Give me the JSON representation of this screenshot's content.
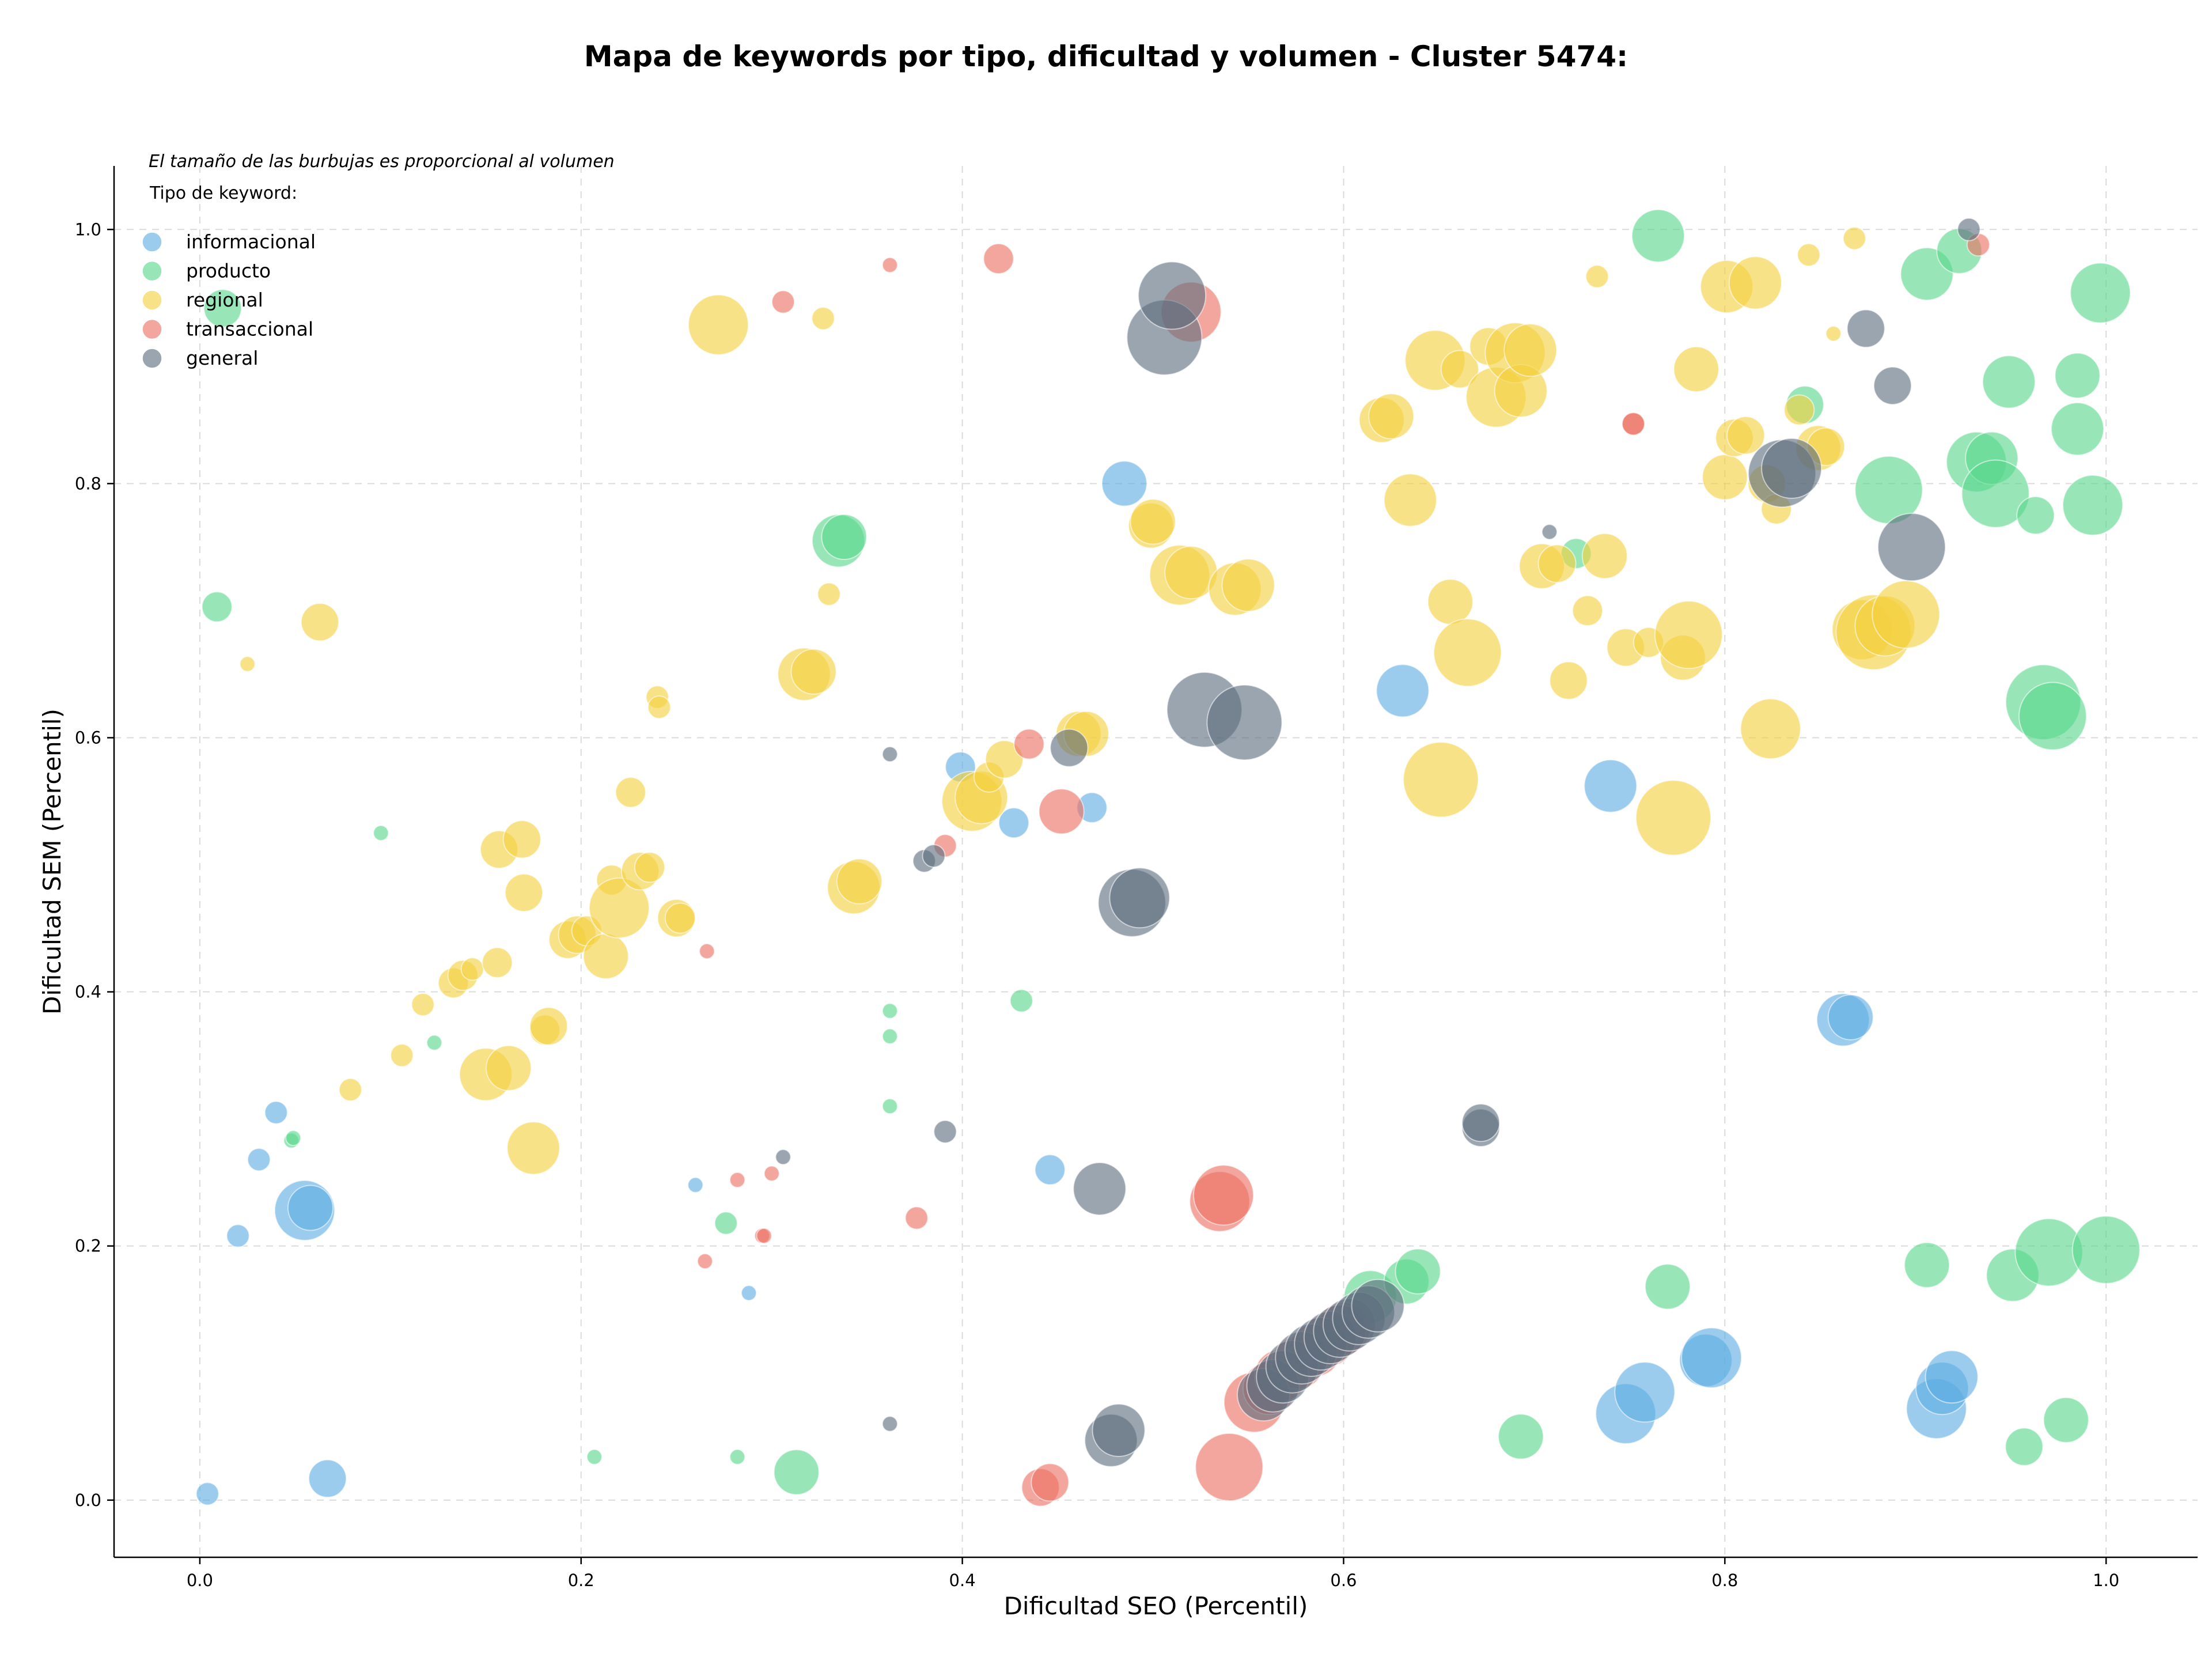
{
  "chart_data": {
    "type": "scatter",
    "title": "Mapa de keywords por tipo, dificultad y volumen - Cluster 5474:",
    "xlabel": "Dificultad SEO (Percentil)",
    "ylabel": "Dificultad SEM (Percentil)",
    "xlim": [
      -0.045,
      1.048
    ],
    "ylim": [
      -0.045,
      1.05
    ],
    "xticks": [
      0.0,
      0.2,
      0.4,
      0.6,
      0.8,
      1.0
    ],
    "yticks": [
      0.0,
      0.2,
      0.4,
      0.6,
      0.8,
      1.0
    ],
    "xtick_labels": [
      "0.0",
      "0.2",
      "0.4",
      "0.6",
      "0.8",
      "1.0"
    ],
    "ytick_labels": [
      "0.0",
      "0.2",
      "0.4",
      "0.6",
      "0.8",
      "1.0"
    ],
    "grid": true,
    "annotation": "El tamaño de las burbujas es proporcional al volumen",
    "legend_title": "Tipo de keyword:",
    "legend_position": "top-left",
    "colors": {
      "informacional": "#5dade2",
      "producto": "#58d68d",
      "regional": "#f4d03f",
      "transaccional": "#ec7063",
      "general": "#5d6d7e"
    },
    "series": [
      {
        "name": "informacional",
        "points": [
          [
            0.004,
            0.005,
            3
          ],
          [
            0.067,
            0.017,
            5
          ],
          [
            0.02,
            0.208,
            3
          ],
          [
            0.031,
            0.268,
            3
          ],
          [
            0.04,
            0.305,
            3
          ],
          [
            0.055,
            0.228,
            8
          ],
          [
            0.058,
            0.23,
            6
          ],
          [
            0.26,
            0.248,
            2
          ],
          [
            0.288,
            0.163,
            2
          ],
          [
            0.399,
            0.577,
            4
          ],
          [
            0.427,
            0.533,
            4
          ],
          [
            0.446,
            0.26,
            4
          ],
          [
            0.468,
            0.545,
            4
          ],
          [
            0.485,
            0.8,
            6
          ],
          [
            0.631,
            0.637,
            7
          ],
          [
            0.74,
            0.562,
            7
          ],
          [
            0.748,
            0.068,
            8
          ],
          [
            0.758,
            0.085,
            8
          ],
          [
            0.79,
            0.11,
            7
          ],
          [
            0.793,
            0.112,
            8
          ],
          [
            0.862,
            0.378,
            7
          ],
          [
            0.866,
            0.38,
            6
          ],
          [
            0.911,
            0.072,
            8
          ],
          [
            0.914,
            0.088,
            7
          ],
          [
            0.919,
            0.097,
            7
          ]
        ]
      },
      {
        "name": "producto",
        "points": [
          [
            0.009,
            0.703,
            4
          ],
          [
            0.012,
            0.938,
            5
          ],
          [
            0.048,
            0.283,
            2
          ],
          [
            0.049,
            0.285,
            2
          ],
          [
            0.095,
            0.525,
            2
          ],
          [
            0.123,
            0.36,
            2
          ],
          [
            0.207,
            0.034,
            2
          ],
          [
            0.276,
            0.218,
            3
          ],
          [
            0.282,
            0.034,
            2
          ],
          [
            0.313,
            0.022,
            6
          ],
          [
            0.335,
            0.755,
            7
          ],
          [
            0.338,
            0.758,
            6
          ],
          [
            0.362,
            0.31,
            2
          ],
          [
            0.362,
            0.365,
            2
          ],
          [
            0.362,
            0.385,
            2
          ],
          [
            0.431,
            0.393,
            3
          ],
          [
            0.614,
            0.16,
            7
          ],
          [
            0.633,
            0.172,
            6
          ],
          [
            0.639,
            0.18,
            6
          ],
          [
            0.693,
            0.05,
            6
          ],
          [
            0.722,
            0.745,
            4
          ],
          [
            0.765,
            0.995,
            7
          ],
          [
            0.77,
            0.168,
            6
          ],
          [
            0.842,
            0.862,
            5
          ],
          [
            0.886,
            0.795,
            9
          ],
          [
            0.906,
            0.185,
            6
          ],
          [
            0.906,
            0.965,
            7
          ],
          [
            0.923,
            0.983,
            6
          ],
          [
            0.932,
            0.817,
            8
          ],
          [
            0.94,
            0.82,
            7
          ],
          [
            0.942,
            0.792,
            9
          ],
          [
            0.949,
            0.88,
            7
          ],
          [
            0.951,
            0.177,
            7
          ],
          [
            0.957,
            0.042,
            5
          ],
          [
            0.963,
            0.775,
            5
          ],
          [
            0.967,
            0.628,
            10
          ],
          [
            0.97,
            0.195,
            9
          ],
          [
            0.972,
            0.617,
            9
          ],
          [
            0.979,
            0.063,
            6
          ],
          [
            0.985,
            0.843,
            7
          ],
          [
            0.985,
            0.885,
            6
          ],
          [
            0.993,
            0.783,
            8
          ],
          [
            0.997,
            0.95,
            8
          ],
          [
            1.0,
            0.197,
            9
          ]
        ]
      },
      {
        "name": "regional",
        "points": [
          [
            0.025,
            0.658,
            2
          ],
          [
            0.063,
            0.691,
            5
          ],
          [
            0.079,
            0.323,
            3
          ],
          [
            0.106,
            0.35,
            3
          ],
          [
            0.117,
            0.39,
            3
          ],
          [
            0.133,
            0.407,
            4
          ],
          [
            0.138,
            0.413,
            4
          ],
          [
            0.143,
            0.418,
            3
          ],
          [
            0.15,
            0.335,
            7
          ],
          [
            0.156,
            0.423,
            4
          ],
          [
            0.157,
            0.512,
            5
          ],
          [
            0.162,
            0.34,
            6
          ],
          [
            0.169,
            0.52,
            5
          ],
          [
            0.17,
            0.478,
            5
          ],
          [
            0.175,
            0.277,
            7
          ],
          [
            0.181,
            0.37,
            4
          ],
          [
            0.183,
            0.373,
            5
          ],
          [
            0.193,
            0.441,
            5
          ],
          [
            0.198,
            0.445,
            5
          ],
          [
            0.203,
            0.448,
            4
          ],
          [
            0.213,
            0.428,
            6
          ],
          [
            0.216,
            0.488,
            4
          ],
          [
            0.22,
            0.466,
            8
          ],
          [
            0.226,
            0.557,
            4
          ],
          [
            0.231,
            0.495,
            5
          ],
          [
            0.236,
            0.498,
            4
          ],
          [
            0.24,
            0.632,
            3
          ],
          [
            0.241,
            0.624,
            3
          ],
          [
            0.25,
            0.458,
            5
          ],
          [
            0.252,
            0.458,
            4
          ],
          [
            0.272,
            0.925,
            8
          ],
          [
            0.317,
            0.65,
            7
          ],
          [
            0.322,
            0.652,
            6
          ],
          [
            0.327,
            0.93,
            3
          ],
          [
            0.33,
            0.713,
            3
          ],
          [
            0.343,
            0.482,
            7
          ],
          [
            0.346,
            0.487,
            6
          ],
          [
            0.405,
            0.55,
            8
          ],
          [
            0.41,
            0.553,
            7
          ],
          [
            0.414,
            0.569,
            4
          ],
          [
            0.422,
            0.583,
            5
          ],
          [
            0.461,
            0.603,
            6
          ],
          [
            0.465,
            0.603,
            6
          ],
          [
            0.499,
            0.767,
            6
          ],
          [
            0.5,
            0.77,
            6
          ],
          [
            0.514,
            0.728,
            8
          ],
          [
            0.52,
            0.73,
            7
          ],
          [
            0.543,
            0.717,
            7
          ],
          [
            0.55,
            0.72,
            7
          ],
          [
            0.62,
            0.85,
            6
          ],
          [
            0.625,
            0.853,
            6
          ],
          [
            0.635,
            0.787,
            7
          ],
          [
            0.648,
            0.897,
            8
          ],
          [
            0.651,
            0.567,
            10
          ],
          [
            0.656,
            0.707,
            6
          ],
          [
            0.661,
            0.89,
            5
          ],
          [
            0.665,
            0.667,
            9
          ],
          [
            0.676,
            0.908,
            5
          ],
          [
            0.68,
            0.868,
            8
          ],
          [
            0.69,
            0.903,
            8
          ],
          [
            0.693,
            0.873,
            7
          ],
          [
            0.698,
            0.905,
            7
          ],
          [
            0.704,
            0.735,
            6
          ],
          [
            0.712,
            0.737,
            5
          ],
          [
            0.718,
            0.645,
            5
          ],
          [
            0.728,
            0.7,
            4
          ],
          [
            0.733,
            0.963,
            3
          ],
          [
            0.737,
            0.743,
            6
          ],
          [
            0.748,
            0.671,
            5
          ],
          [
            0.76,
            0.675,
            4
          ],
          [
            0.773,
            0.537,
            10
          ],
          [
            0.778,
            0.663,
            6
          ],
          [
            0.781,
            0.681,
            9
          ],
          [
            0.785,
            0.89,
            6
          ],
          [
            0.8,
            0.805,
            6
          ],
          [
            0.801,
            0.955,
            7
          ],
          [
            0.805,
            0.836,
            5
          ],
          [
            0.811,
            0.838,
            5
          ],
          [
            0.816,
            0.958,
            7
          ],
          [
            0.822,
            0.8,
            5
          ],
          [
            0.824,
            0.607,
            8
          ],
          [
            0.827,
            0.78,
            4
          ],
          [
            0.839,
            0.858,
            4
          ],
          [
            0.844,
            0.98,
            3
          ],
          [
            0.849,
            0.828,
            6
          ],
          [
            0.853,
            0.829,
            5
          ],
          [
            0.857,
            0.918,
            2
          ],
          [
            0.868,
            0.993,
            3
          ],
          [
            0.872,
            0.685,
            8
          ],
          [
            0.878,
            0.683,
            10
          ],
          [
            0.884,
            0.688,
            8
          ],
          [
            0.895,
            0.697,
            9
          ]
        ]
      },
      {
        "name": "transaccional",
        "points": [
          [
            0.265,
            0.188,
            2
          ],
          [
            0.266,
            0.432,
            2
          ],
          [
            0.282,
            0.252,
            2
          ],
          [
            0.295,
            0.208,
            2
          ],
          [
            0.296,
            0.208,
            2
          ],
          [
            0.3,
            0.257,
            2
          ],
          [
            0.306,
            0.943,
            3
          ],
          [
            0.362,
            0.972,
            2
          ],
          [
            0.376,
            0.222,
            3
          ],
          [
            0.391,
            0.515,
            3
          ],
          [
            0.419,
            0.977,
            4
          ],
          [
            0.435,
            0.595,
            4
          ],
          [
            0.441,
            0.01,
            5
          ],
          [
            0.446,
            0.014,
            5
          ],
          [
            0.452,
            0.542,
            6
          ],
          [
            0.52,
            0.935,
            8
          ],
          [
            0.535,
            0.235,
            8
          ],
          [
            0.537,
            0.24,
            8
          ],
          [
            0.54,
            0.026,
            9
          ],
          [
            0.553,
            0.077,
            8
          ],
          [
            0.561,
            0.088,
            7
          ],
          [
            0.567,
            0.098,
            7
          ],
          [
            0.576,
            0.108,
            7
          ],
          [
            0.585,
            0.118,
            7
          ],
          [
            0.592,
            0.126,
            7
          ],
          [
            0.6,
            0.135,
            7
          ],
          [
            0.752,
            0.847,
            3
          ],
          [
            0.752,
            0.847,
            3
          ],
          [
            0.933,
            0.988,
            3
          ]
        ]
      },
      {
        "name": "general",
        "points": [
          [
            0.306,
            0.27,
            2
          ],
          [
            0.362,
            0.06,
            2
          ],
          [
            0.362,
            0.587,
            2
          ],
          [
            0.38,
            0.503,
            3
          ],
          [
            0.385,
            0.507,
            3
          ],
          [
            0.391,
            0.29,
            3
          ],
          [
            0.456,
            0.592,
            5
          ],
          [
            0.472,
            0.245,
            7
          ],
          [
            0.478,
            0.047,
            7
          ],
          [
            0.482,
            0.055,
            7
          ],
          [
            0.489,
            0.47,
            9
          ],
          [
            0.493,
            0.474,
            8
          ],
          [
            0.506,
            0.915,
            10
          ],
          [
            0.51,
            0.948,
            9
          ],
          [
            0.527,
            0.622,
            10
          ],
          [
            0.548,
            0.612,
            10
          ],
          [
            0.558,
            0.083,
            7
          ],
          [
            0.563,
            0.09,
            7
          ],
          [
            0.568,
            0.097,
            7
          ],
          [
            0.573,
            0.105,
            7
          ],
          [
            0.578,
            0.112,
            7
          ],
          [
            0.583,
            0.118,
            7
          ],
          [
            0.588,
            0.123,
            7
          ],
          [
            0.593,
            0.128,
            7
          ],
          [
            0.598,
            0.133,
            7
          ],
          [
            0.603,
            0.138,
            7
          ],
          [
            0.608,
            0.143,
            7
          ],
          [
            0.613,
            0.148,
            7
          ],
          [
            0.618,
            0.153,
            7
          ],
          [
            0.672,
            0.293,
            5
          ],
          [
            0.672,
            0.297,
            5
          ],
          [
            0.708,
            0.762,
            2
          ],
          [
            0.83,
            0.808,
            9
          ],
          [
            0.835,
            0.812,
            8
          ],
          [
            0.874,
            0.922,
            5
          ],
          [
            0.888,
            0.877,
            5
          ],
          [
            0.898,
            0.75,
            9
          ],
          [
            0.928,
            1.0,
            3
          ]
        ]
      }
    ]
  }
}
